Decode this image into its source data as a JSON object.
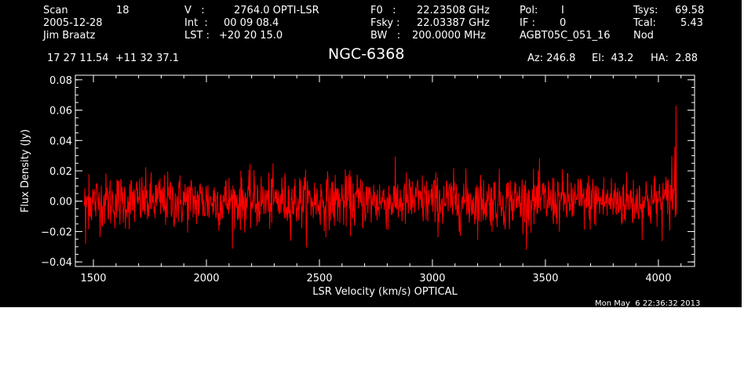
{
  "header": {
    "col1": [
      "Scan",
      "2005-12-28",
      "Jim Braatz"
    ],
    "scan_number": "18",
    "col2_labels": [
      "V   :",
      "Int  :",
      "LST :"
    ],
    "col2_values": [
      "2764.0 OPTI-LSR",
      "00 09 08.4",
      "+20 20 15.0"
    ],
    "col3_labels": [
      "F0   :",
      "Fsky :",
      "BW   :"
    ],
    "col3_values": [
      "22.23508 GHz",
      "22.03387 GHz",
      "200.0000 MHz"
    ],
    "col4_labels": [
      "Pol:",
      "IF :",
      "AGBT05C_051_16"
    ],
    "col4_values": [
      "I",
      "0",
      "Nod"
    ],
    "col5_labels": [
      "Tsys:",
      "Tcal:"
    ],
    "col5_values": [
      "69.58",
      "5.43"
    ],
    "coords": "17 27 11.54  +11 32 37.1",
    "source": "NGC-6368",
    "az": "Az: 246.8",
    "el": "El:  43.2",
    "ha": "HA:  2.88",
    "timestamp": "Mon May  6 22:36:32 2013"
  },
  "chart_data": {
    "type": "line",
    "title": "NGC-6368",
    "xlabel": "LSR Velocity (km/s) OPTICAL",
    "ylabel": "Flux Density (Jy)",
    "xlim": [
      1420,
      4160
    ],
    "ylim": [
      -0.043,
      0.083
    ],
    "x_ticks": [
      1500,
      2000,
      2500,
      3000,
      3500,
      4000
    ],
    "x_tick_labels": [
      "1500",
      "2000",
      "2500",
      "3000",
      "3500",
      "4000"
    ],
    "y_ticks": [
      -0.04,
      -0.02,
      0.0,
      0.02,
      0.04,
      0.06,
      0.08
    ],
    "y_tick_labels": [
      "−0.04",
      "−0.02",
      "0.00",
      "0.02",
      "0.04",
      "0.06",
      "0.08"
    ],
    "series": [
      {
        "color": "#ff0000",
        "x_start": 1460,
        "x_end": 4080,
        "noise_rms": 0.009,
        "features": [
          {
            "x": 1465,
            "y": -0.028
          },
          {
            "x": 1480,
            "y": 0.018
          },
          {
            "x": 4060,
            "y": 0.03
          },
          {
            "x": 4072,
            "y": 0.036
          },
          {
            "x": 4078,
            "y": 0.063
          }
        ]
      }
    ],
    "grid": false,
    "legend": "none"
  },
  "colors": {
    "background": "#000000",
    "foreground": "#ffffff",
    "trace": "#ff0000"
  }
}
